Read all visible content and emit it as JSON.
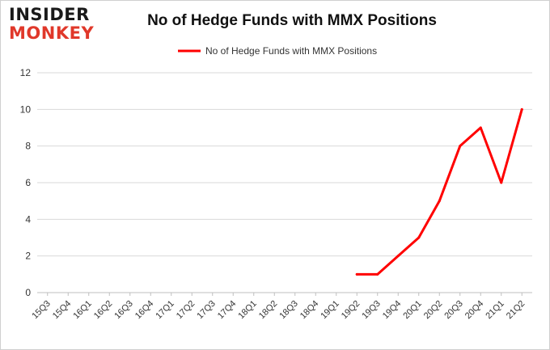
{
  "logo": {
    "line1": "INSIDER",
    "line2": "MONKEY"
  },
  "title": "No of Hedge Funds with MMX Positions",
  "colors": {
    "series": "#ff0000",
    "grid": "#d9d9d9",
    "axis_text": "#333333",
    "brand_red": "#e0382a"
  },
  "chart_data": {
    "type": "line",
    "title": "No of Hedge Funds with MMX Positions",
    "xlabel": "",
    "ylabel": "",
    "categories": [
      "15Q3",
      "15Q4",
      "16Q1",
      "16Q2",
      "16Q3",
      "16Q4",
      "17Q1",
      "17Q2",
      "17Q3",
      "17Q4",
      "18Q1",
      "18Q2",
      "18Q3",
      "18Q4",
      "19Q1",
      "19Q2",
      "19Q3",
      "19Q4",
      "20Q1",
      "20Q2",
      "20Q3",
      "20Q4",
      "21Q1",
      "21Q2"
    ],
    "series": [
      {
        "name": "No of Hedge Funds with MMX Positions",
        "values": [
          null,
          null,
          null,
          null,
          null,
          null,
          null,
          null,
          null,
          null,
          null,
          null,
          null,
          null,
          null,
          1,
          1,
          2,
          3,
          5,
          8,
          9,
          6,
          10
        ]
      }
    ],
    "ylim": [
      0,
      12
    ],
    "yticks": [
      0,
      2,
      4,
      6,
      8,
      10,
      12
    ],
    "grid": true,
    "legend_position": "top-center"
  }
}
